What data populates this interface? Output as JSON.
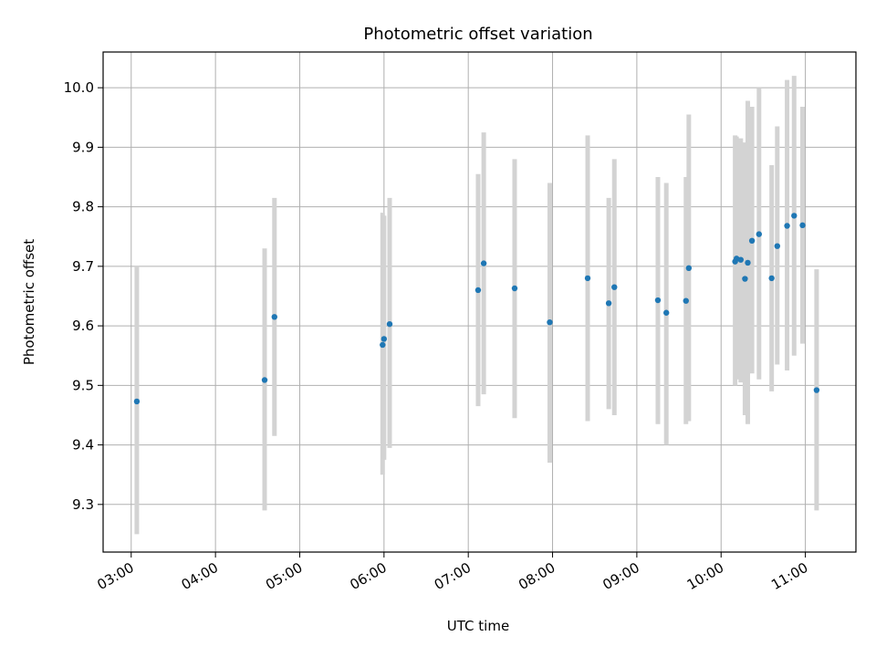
{
  "chart_data": {
    "type": "scatter",
    "title": "Photometric offset variation",
    "xlabel": "UTC time",
    "ylabel": "Photometric offset",
    "x_axis_kind": "time-of-day",
    "xlim": [
      "02:40",
      "11:36"
    ],
    "ylim": [
      9.22,
      10.06
    ],
    "x_ticks": [
      "03:00",
      "04:00",
      "05:00",
      "06:00",
      "07:00",
      "08:00",
      "09:00",
      "10:00",
      "11:00"
    ],
    "y_ticks": [
      "9.3",
      "9.4",
      "9.5",
      "9.6",
      "9.7",
      "9.8",
      "9.9",
      "10.0"
    ],
    "grid": true,
    "point_color": "#1f77b4",
    "errorbar_color": "#d3d3d3",
    "series": [
      {
        "points": [
          {
            "x": "03:04",
            "y": 9.473,
            "ylow": 9.25,
            "yhigh": 9.7
          },
          {
            "x": "04:35",
            "y": 9.509,
            "ylow": 9.29,
            "yhigh": 9.73
          },
          {
            "x": "04:42",
            "y": 9.615,
            "ylow": 9.415,
            "yhigh": 9.815
          },
          {
            "x": "05:59",
            "y": 9.568,
            "ylow": 9.35,
            "yhigh": 9.79
          },
          {
            "x": "06:00",
            "y": 9.578,
            "ylow": 9.375,
            "yhigh": 9.785
          },
          {
            "x": "06:04",
            "y": 9.603,
            "ylow": 9.395,
            "yhigh": 9.815
          },
          {
            "x": "07:07",
            "y": 9.66,
            "ylow": 9.465,
            "yhigh": 9.855
          },
          {
            "x": "07:11",
            "y": 9.705,
            "ylow": 9.485,
            "yhigh": 9.925
          },
          {
            "x": "07:33",
            "y": 9.663,
            "ylow": 9.445,
            "yhigh": 9.88
          },
          {
            "x": "07:58",
            "y": 9.606,
            "ylow": 9.37,
            "yhigh": 9.84
          },
          {
            "x": "08:25",
            "y": 9.68,
            "ylow": 9.44,
            "yhigh": 9.92
          },
          {
            "x": "08:40",
            "y": 9.638,
            "ylow": 9.46,
            "yhigh": 9.815
          },
          {
            "x": "08:44",
            "y": 9.665,
            "ylow": 9.45,
            "yhigh": 9.88
          },
          {
            "x": "09:15",
            "y": 9.643,
            "ylow": 9.435,
            "yhigh": 9.85
          },
          {
            "x": "09:21",
            "y": 9.622,
            "ylow": 9.4,
            "yhigh": 9.84
          },
          {
            "x": "09:35",
            "y": 9.642,
            "ylow": 9.435,
            "yhigh": 9.85
          },
          {
            "x": "09:37",
            "y": 9.697,
            "ylow": 9.44,
            "yhigh": 9.955
          },
          {
            "x": "10:10",
            "y": 9.708,
            "ylow": 9.5,
            "yhigh": 9.92
          },
          {
            "x": "10:11",
            "y": 9.713,
            "ylow": 9.51,
            "yhigh": 9.918
          },
          {
            "x": "10:14",
            "y": 9.711,
            "ylow": 9.505,
            "yhigh": 9.915
          },
          {
            "x": "10:17",
            "y": 9.679,
            "ylow": 9.45,
            "yhigh": 9.908
          },
          {
            "x": "10:19",
            "y": 9.706,
            "ylow": 9.435,
            "yhigh": 9.978
          },
          {
            "x": "10:22",
            "y": 9.743,
            "ylow": 9.52,
            "yhigh": 9.968
          },
          {
            "x": "10:27",
            "y": 9.754,
            "ylow": 9.51,
            "yhigh": 10.0
          },
          {
            "x": "10:36",
            "y": 9.68,
            "ylow": 9.49,
            "yhigh": 9.87
          },
          {
            "x": "10:40",
            "y": 9.734,
            "ylow": 9.535,
            "yhigh": 9.935
          },
          {
            "x": "10:47",
            "y": 9.768,
            "ylow": 9.525,
            "yhigh": 10.013
          },
          {
            "x": "10:52",
            "y": 9.785,
            "ylow": 9.55,
            "yhigh": 10.02
          },
          {
            "x": "10:58",
            "y": 9.769,
            "ylow": 9.57,
            "yhigh": 9.968
          },
          {
            "x": "11:08",
            "y": 9.492,
            "ylow": 9.29,
            "yhigh": 9.695
          }
        ]
      }
    ]
  }
}
